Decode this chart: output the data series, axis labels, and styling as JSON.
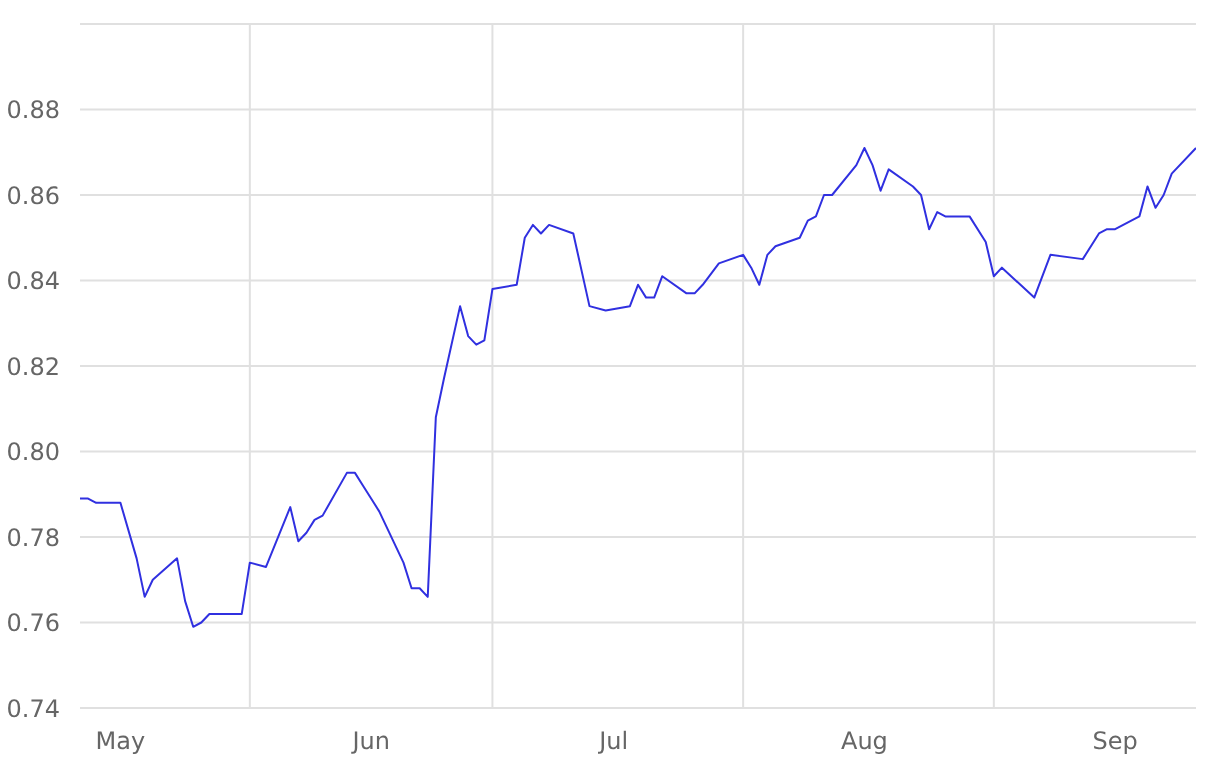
{
  "chart_data": {
    "type": "line",
    "x": [
      "--05-11",
      "--05-12",
      "--05-13",
      "--05-16",
      "--05-18",
      "--05-19",
      "--05-20",
      "--05-23",
      "--05-24",
      "--05-25",
      "--05-26",
      "--05-27",
      "--05-30",
      "--05-31",
      "--06-01",
      "--06-03",
      "--06-06",
      "--06-07",
      "--06-08",
      "--06-09",
      "--06-10",
      "--06-13",
      "--06-14",
      "--06-15",
      "--06-16",
      "--06-17",
      "--06-20",
      "--06-21",
      "--06-22",
      "--06-23",
      "--06-24",
      "--06-25",
      "--06-27",
      "--06-28",
      "--06-29",
      "--06-30",
      "--07-01",
      "--07-04",
      "--07-05",
      "--07-06",
      "--07-07",
      "--07-08",
      "--07-11",
      "--07-13",
      "--07-15",
      "--07-18",
      "--07-19",
      "--07-20",
      "--07-21",
      "--07-22",
      "--07-25",
      "--07-26",
      "--07-27",
      "--07-29",
      "--08-01",
      "--08-02",
      "--08-03",
      "--08-04",
      "--08-05",
      "--08-08",
      "--08-09",
      "--08-10",
      "--08-11",
      "--08-12",
      "--08-15",
      "--08-16",
      "--08-17",
      "--08-18",
      "--08-19",
      "--08-22",
      "--08-23",
      "--08-24",
      "--08-25",
      "--08-26",
      "--08-29",
      "--08-31",
      "--09-01",
      "--09-02",
      "--09-06",
      "--09-08",
      "--09-12",
      "--09-14",
      "--09-15",
      "--09-16",
      "--09-19",
      "--09-20",
      "--09-21",
      "--09-22",
      "--09-23",
      "--09-26"
    ],
    "series": [
      {
        "color": "#3030e0",
        "values": [
          0.789,
          0.789,
          0.788,
          0.788,
          0.775,
          0.766,
          0.77,
          0.775,
          0.765,
          0.759,
          0.76,
          0.762,
          0.762,
          0.762,
          0.774,
          0.773,
          0.787,
          0.779,
          0.781,
          0.784,
          0.785,
          0.795,
          0.795,
          0.792,
          0.789,
          0.786,
          0.774,
          0.768,
          0.768,
          0.766,
          0.808,
          0.817,
          0.834,
          0.827,
          0.825,
          0.826,
          0.838,
          0.839,
          0.85,
          0.853,
          0.851,
          0.853,
          0.851,
          0.834,
          0.833,
          0.834,
          0.839,
          0.836,
          0.836,
          0.841,
          0.837,
          0.837,
          0.839,
          0.844,
          0.846,
          0.843,
          0.839,
          0.846,
          0.848,
          0.85,
          0.854,
          0.855,
          0.86,
          0.86,
          0.867,
          0.871,
          0.867,
          0.861,
          0.866,
          0.862,
          0.86,
          0.852,
          0.856,
          0.855,
          0.855,
          0.849,
          0.841,
          0.843,
          0.836,
          0.846,
          0.845,
          0.851,
          0.852,
          0.852,
          0.855,
          0.862,
          0.857,
          0.86,
          0.865,
          0.871
        ]
      }
    ],
    "xlim": [
      "--05-11",
      "--09-26"
    ],
    "xticks": [
      {
        "value": "--05-16",
        "label": "May"
      },
      {
        "value": "--06-01",
        "label": null
      },
      {
        "value": "--06-16",
        "label": "Jun"
      },
      {
        "value": "--07-01",
        "label": null
      },
      {
        "value": "--07-16",
        "label": "Jul"
      },
      {
        "value": "--08-01",
        "label": null
      },
      {
        "value": "--08-16",
        "label": "Aug"
      },
      {
        "value": "--09-01",
        "label": null
      },
      {
        "value": "--09-16",
        "label": "Sep"
      }
    ],
    "ylim": [
      0.74,
      0.9
    ],
    "yticks": [
      0.74,
      0.76,
      0.78,
      {
        "value": 0.8,
        "label": "0.80"
      },
      0.82,
      0.84,
      0.86,
      0.88,
      {
        "value": 0.9,
        "label": null
      }
    ],
    "grid": true,
    "legend": false,
    "marker": "none",
    "line_style": "solid"
  }
}
